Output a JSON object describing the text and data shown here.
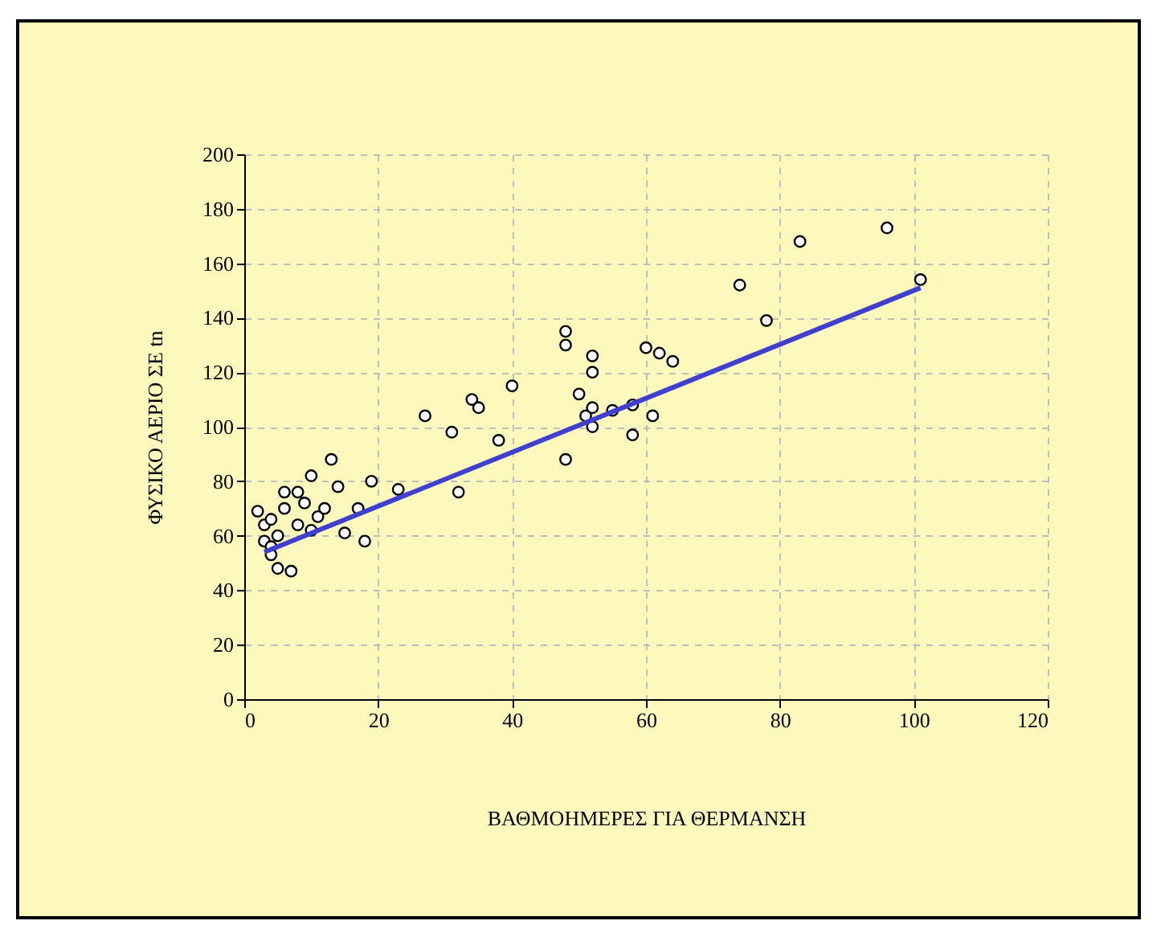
{
  "chart_data": {
    "type": "scatter",
    "xlabel": "ΒΑΘΜΟΗΜΕΡΕΣ ΓΙΑ ΘΕΡΜΑΝΣΗ",
    "ylabel": "ΦΥΣΙΚΟ ΑΕΡΙΟ ΣΕ tn",
    "xlim": [
      0,
      120
    ],
    "xticks": [
      0,
      20,
      40,
      60,
      80,
      100,
      120
    ],
    "ylim": [
      0,
      200
    ],
    "yticks": [
      0,
      20,
      40,
      60,
      80,
      100,
      120,
      140,
      160,
      180,
      200
    ],
    "grid": true,
    "series": [
      {
        "type": "scatter",
        "marker": "circle",
        "color": "#000000",
        "x": [
          2,
          3,
          3,
          4,
          4,
          5,
          4,
          5,
          6,
          7,
          6,
          8,
          8,
          9,
          10,
          10,
          11,
          12,
          13,
          14,
          15,
          17,
          18,
          19,
          23,
          27,
          31,
          32,
          34,
          35,
          38,
          40,
          48,
          48,
          48,
          50,
          51,
          52,
          52,
          52,
          52,
          55,
          58,
          58,
          60,
          61,
          62,
          64,
          74,
          78,
          83,
          96,
          101
        ],
        "values": [
          69,
          64,
          58,
          56,
          53,
          60,
          66,
          48,
          76,
          47,
          70,
          76,
          64,
          72,
          62,
          82,
          67,
          70,
          88,
          78,
          61,
          70,
          58,
          80,
          77,
          104,
          98,
          76,
          110,
          107,
          95,
          115,
          88,
          130,
          135,
          112,
          104,
          100,
          107,
          120,
          126,
          106,
          108,
          97,
          129,
          104,
          127,
          124,
          152,
          139,
          168,
          173,
          154
        ]
      },
      {
        "type": "line",
        "color": "#3f3fd0",
        "x": [
          3,
          101
        ],
        "values": [
          54,
          151
        ]
      }
    ]
  }
}
